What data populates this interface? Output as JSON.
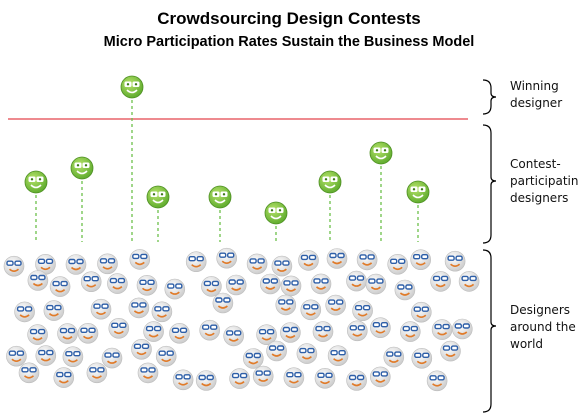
{
  "header": {
    "title": "Crowdsourcing Design Contests",
    "subtitle": "Micro Participation Rates Sustain the Business Model"
  },
  "groups": [
    {
      "label": [
        "Winning",
        "designer"
      ]
    },
    {
      "label": [
        "Contest-",
        "participating",
        "designers"
      ]
    },
    {
      "label": [
        "Designers",
        "around the",
        "world"
      ]
    }
  ]
}
